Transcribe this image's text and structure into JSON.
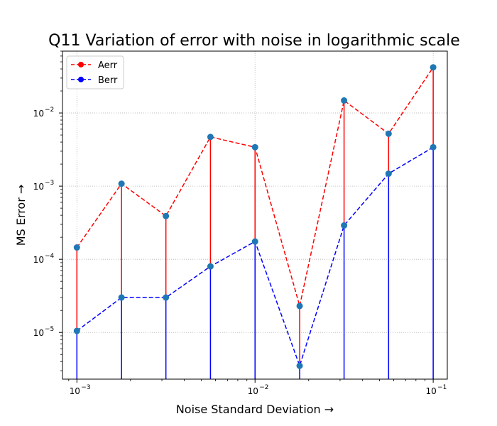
{
  "chart_data": {
    "type": "line",
    "title": "Q11 Variation of error with noise in logarithmic scale",
    "xlabel": "Noise Standard Deviation →",
    "ylabel": "MS Error →",
    "xscale": "log",
    "yscale": "log",
    "xlim": [
      0.00083,
      0.12
    ],
    "ylim": [
      2.3e-06,
      0.07
    ],
    "grid": true,
    "legend_position": "top-left",
    "x_ticks": [
      {
        "base": "10",
        "exp": "−3",
        "value": 0.001
      },
      {
        "base": "10",
        "exp": "−2",
        "value": 0.01
      },
      {
        "base": "10",
        "exp": "−1",
        "value": 0.1
      }
    ],
    "y_ticks": [
      {
        "base": "10",
        "exp": "−5",
        "value": 1e-05
      },
      {
        "base": "10",
        "exp": "−4",
        "value": 0.0001
      },
      {
        "base": "10",
        "exp": "−3",
        "value": 0.001
      },
      {
        "base": "10",
        "exp": "−2",
        "value": 0.01
      }
    ],
    "x": [
      0.001,
      0.00178,
      0.00316,
      0.00562,
      0.01,
      0.0178,
      0.0316,
      0.0562,
      0.1
    ],
    "series": [
      {
        "name": "Aerr",
        "color": "#ff0000",
        "values": [
          0.000145,
          0.00108,
          0.00039,
          0.0047,
          0.0034,
          2.3e-05,
          0.0148,
          0.0052,
          0.042
        ]
      },
      {
        "name": "Berr",
        "color": "#0000ff",
        "values": [
          1.05e-05,
          3e-05,
          3e-05,
          8e-05,
          0.000175,
          3.5e-06,
          0.00029,
          0.00148,
          0.0034
        ]
      }
    ],
    "marker_color": "#1f77b4"
  }
}
